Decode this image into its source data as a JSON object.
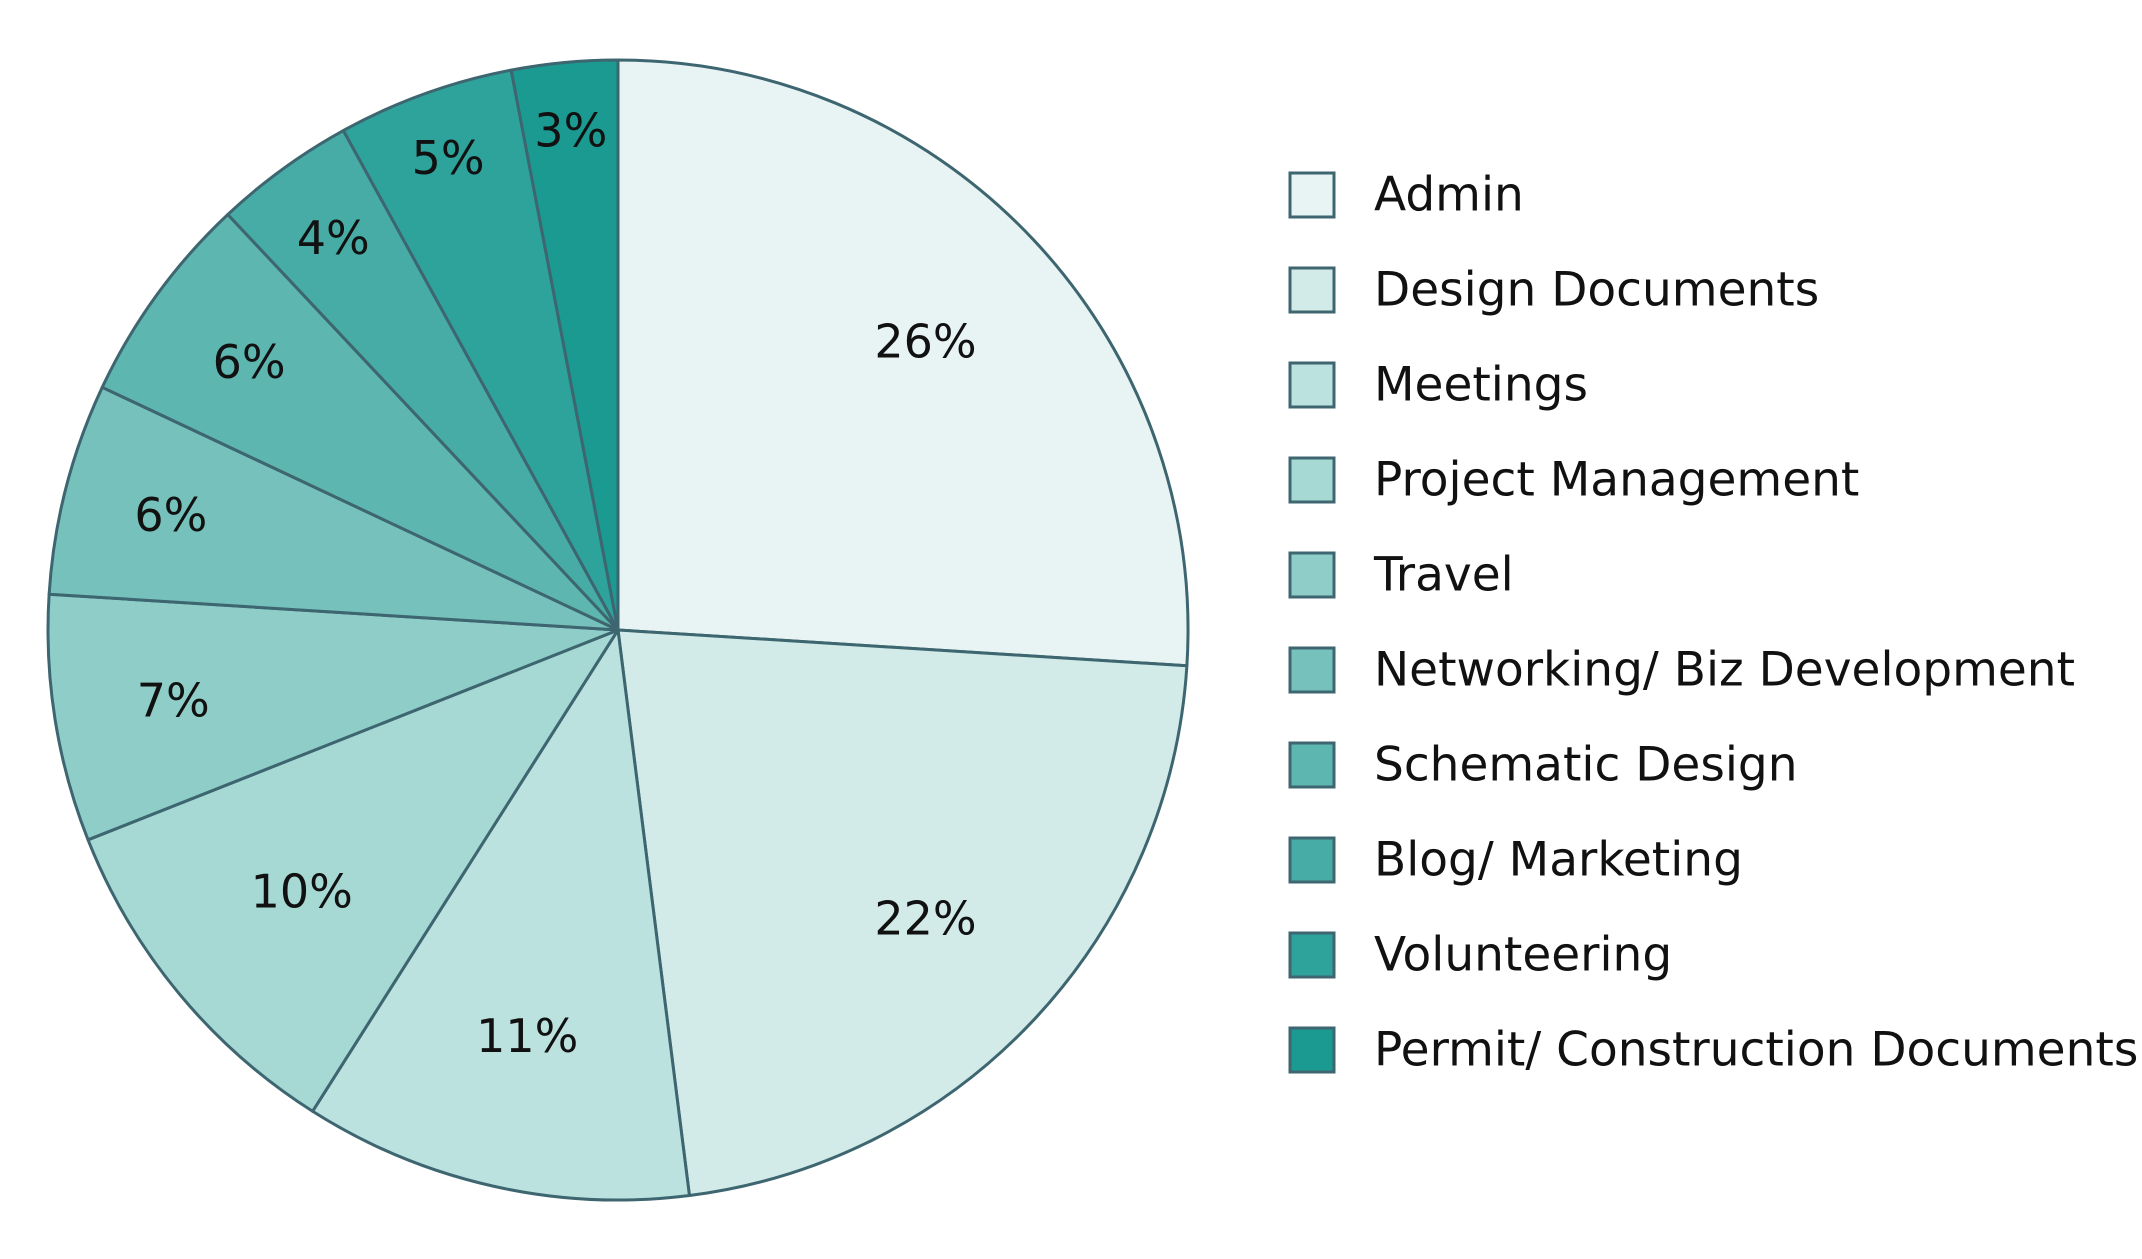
{
  "chart_data": {
    "type": "pie",
    "start_angle": "12 o'clock",
    "direction": "clockwise",
    "legend_position": "right",
    "categories": [
      "Admin",
      "Design Documents",
      "Meetings",
      "Project Management",
      "Travel",
      "Networking/ Biz Development",
      "Schematic Design",
      "Blog/ Marketing",
      "Volunteering",
      "Permit/ Construction Documents"
    ],
    "values": [
      26,
      22,
      11,
      10,
      7,
      6,
      6,
      4,
      5,
      3
    ],
    "value_labels": [
      "26%",
      "22%",
      "11%",
      "10%",
      "7%",
      "6%",
      "6%",
      "4%",
      "5%",
      "3%"
    ],
    "colors": [
      "#e8f4f4",
      "#d2ebe8",
      "#bce2df",
      "#a6d8d4",
      "#8fcdc8",
      "#76c1bb",
      "#5eb6b0",
      "#46aca5",
      "#2ea39b",
      "#1a9a91"
    ],
    "border_color": "#3d6670",
    "label_color": "#111111"
  }
}
